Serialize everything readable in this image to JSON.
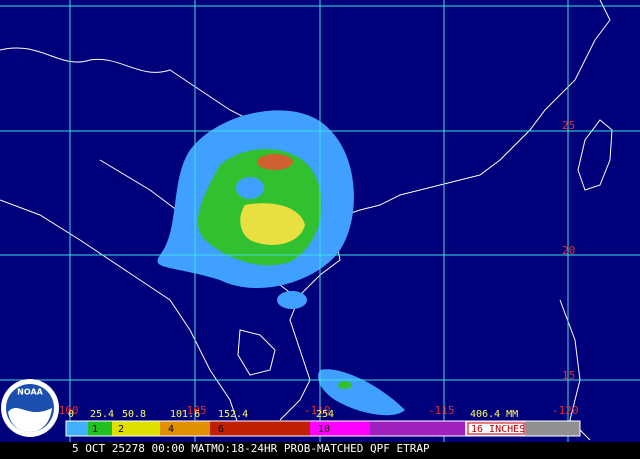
{
  "map": {
    "lat_labels": [
      "25",
      "20",
      "15"
    ],
    "lon_labels": [
      "-100",
      "-105",
      "-110",
      "-115",
      "-120"
    ]
  },
  "legend": {
    "mm_labels": [
      "0",
      "25.4",
      "50.8",
      "101.6",
      "152.4",
      "254",
      "406.4 MM"
    ],
    "inch_labels": [
      "1",
      "2",
      "4",
      "6",
      "10",
      "16 INCHES"
    ]
  },
  "logo": "NOAA",
  "caption": "5 OCT 25278 00:00 MATMO:18-24HR PROB-MATCHED QPF ETRAP"
}
